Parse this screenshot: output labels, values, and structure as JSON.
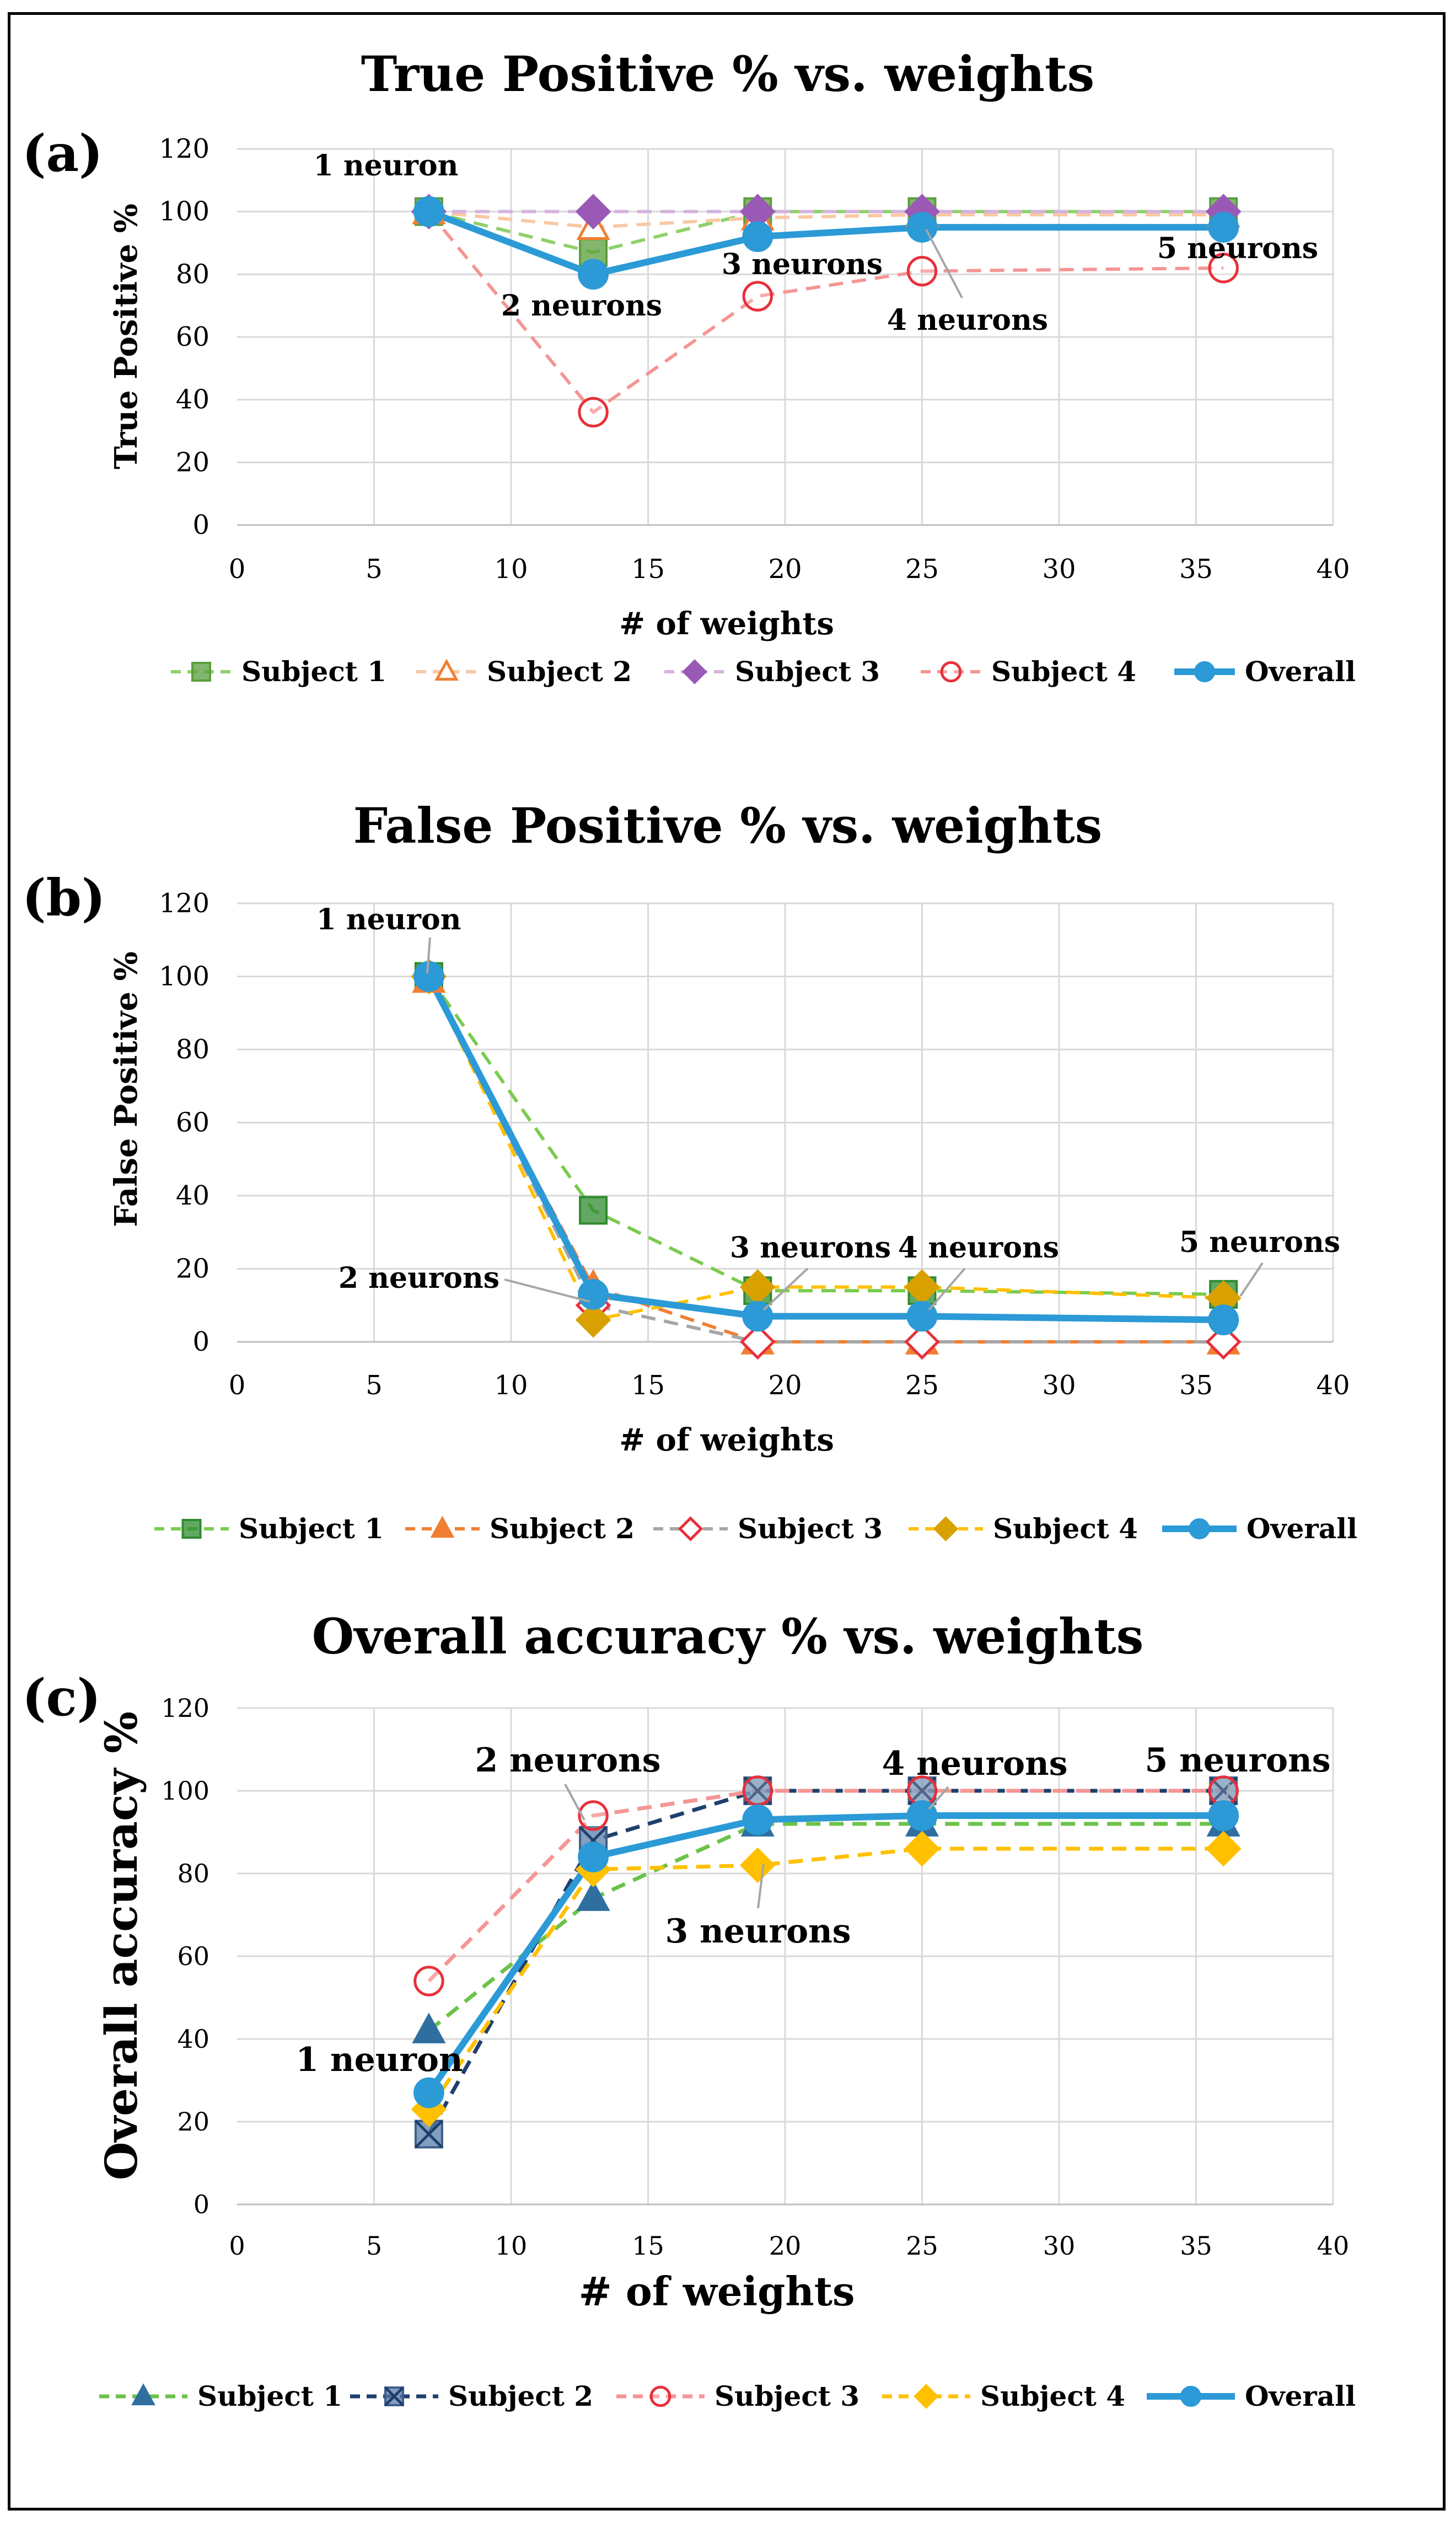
{
  "chart_data": [
    {
      "type": "line",
      "panel_label": "(a)",
      "title": "True Positive % vs. weights",
      "xlabel": "# of weights",
      "ylabel": "True Positive %",
      "xlim": [
        0,
        40
      ],
      "ylim": [
        0,
        120
      ],
      "xticks": [
        0,
        5,
        10,
        15,
        20,
        25,
        30,
        35,
        40
      ],
      "yticks": [
        0,
        20,
        40,
        60,
        80,
        100,
        120
      ],
      "grid": true,
      "legend": "bottom",
      "x": [
        7,
        13,
        19,
        25,
        36
      ],
      "series": [
        {
          "name": "Subject 1",
          "values": [
            100,
            87,
            100,
            100,
            100
          ],
          "color": "#8fd16a",
          "marker_color": "#5a9e3c",
          "marker": "square",
          "dash": true
        },
        {
          "name": "Subject 2",
          "values": [
            100,
            95,
            98,
            99,
            99
          ],
          "color": "#f9c8a4",
          "marker_color": "#f07f33",
          "marker": "triangle-open",
          "dash": true
        },
        {
          "name": "Subject 3",
          "values": [
            100,
            100,
            100,
            100,
            100
          ],
          "color": "#d5b3dd",
          "marker_color": "#9b59b6",
          "marker": "diamond",
          "dash": true
        },
        {
          "name": "Subject 4",
          "values": [
            100,
            36,
            73,
            81,
            82
          ],
          "color": "#f59595",
          "marker_color": "#e8303a",
          "marker": "circle-open",
          "dash": true
        },
        {
          "name": "Overall",
          "values": [
            100,
            80,
            92,
            95,
            95
          ],
          "color": "#2b9ad6",
          "marker_color": "#2b9ad6",
          "marker": "circle",
          "dash": false
        }
      ],
      "annotations": [
        "1 neuron",
        "2 neurons",
        "3 neurons",
        "4 neurons",
        "5 neurons"
      ]
    },
    {
      "type": "line",
      "panel_label": "(b)",
      "title": "False Positive % vs. weights",
      "xlabel": "# of weights",
      "ylabel": "False Positive %",
      "xlim": [
        0,
        40
      ],
      "ylim": [
        0,
        120
      ],
      "xticks": [
        0,
        5,
        10,
        15,
        20,
        25,
        30,
        35,
        40
      ],
      "yticks": [
        0,
        20,
        40,
        60,
        80,
        100,
        120
      ],
      "grid": true,
      "legend": "bottom",
      "x": [
        7,
        13,
        19,
        25,
        36
      ],
      "series": [
        {
          "name": "Subject 1",
          "values": [
            100,
            36,
            14,
            14,
            13
          ],
          "color": "#7acb4f",
          "marker_color": "#2e8b2e",
          "marker": "square",
          "dash": true
        },
        {
          "name": "Subject 2",
          "values": [
            99,
            15,
            0,
            0,
            0
          ],
          "color": "#f07f33",
          "marker_color": "#f07f33",
          "marker": "triangle",
          "dash": true
        },
        {
          "name": "Subject 3",
          "values": [
            100,
            10,
            0,
            0,
            0
          ],
          "color": "#a6a6a6",
          "marker_color": "#e8303a",
          "marker": "diamond-open",
          "dash": true
        },
        {
          "name": "Subject 4",
          "values": [
            100,
            6,
            15,
            15,
            12
          ],
          "color": "#ffc000",
          "marker_color": "#d8a100",
          "marker": "diamond",
          "dash": true
        },
        {
          "name": "Overall",
          "values": [
            100,
            13,
            7,
            7,
            6
          ],
          "color": "#2b9ad6",
          "marker_color": "#2b9ad6",
          "marker": "circle",
          "dash": false
        }
      ],
      "annotations": [
        "1 neuron",
        "2 neurons",
        "3 neurons",
        "4 neurons",
        "5 neurons"
      ]
    },
    {
      "type": "line",
      "panel_label": "(c)",
      "title": "Overall accuracy % vs. weights",
      "xlabel": "# of weights",
      "ylabel": "Overall accuracy %",
      "xlim": [
        0,
        40
      ],
      "ylim": [
        0,
        120
      ],
      "xticks": [
        0,
        5,
        10,
        15,
        20,
        25,
        30,
        35,
        40
      ],
      "yticks": [
        0,
        20,
        40,
        60,
        80,
        100,
        120
      ],
      "grid": true,
      "legend": "bottom",
      "x": [
        7,
        13,
        19,
        25,
        36
      ],
      "series": [
        {
          "name": "Subject 1",
          "values": [
            42,
            74,
            92,
            92,
            92
          ],
          "color": "#6cc24a",
          "marker_color": "#2f6f9f",
          "marker": "triangle",
          "dash": true
        },
        {
          "name": "Subject 2",
          "values": [
            17,
            88,
            100,
            100,
            100
          ],
          "color": "#1f3f6e",
          "marker_color": "#5a7ea8",
          "marker": "x-square",
          "dash": true
        },
        {
          "name": "Subject 3",
          "values": [
            54,
            94,
            100,
            100,
            100
          ],
          "color": "#f59595",
          "marker_color": "#e8303a",
          "marker": "circle-open",
          "dash": true
        },
        {
          "name": "Subject 4",
          "values": [
            23,
            81,
            82,
            86,
            86
          ],
          "color": "#ffc000",
          "marker_color": "#ffc000",
          "marker": "diamond",
          "dash": true
        },
        {
          "name": "Overall",
          "values": [
            27,
            84,
            93,
            94,
            94
          ],
          "color": "#2b9ad6",
          "marker_color": "#2b9ad6",
          "marker": "circle",
          "dash": false
        }
      ],
      "annotations": [
        "1 neuron",
        "2 neurons",
        "3 neurons",
        "4 neurons",
        "5 neurons"
      ]
    }
  ]
}
